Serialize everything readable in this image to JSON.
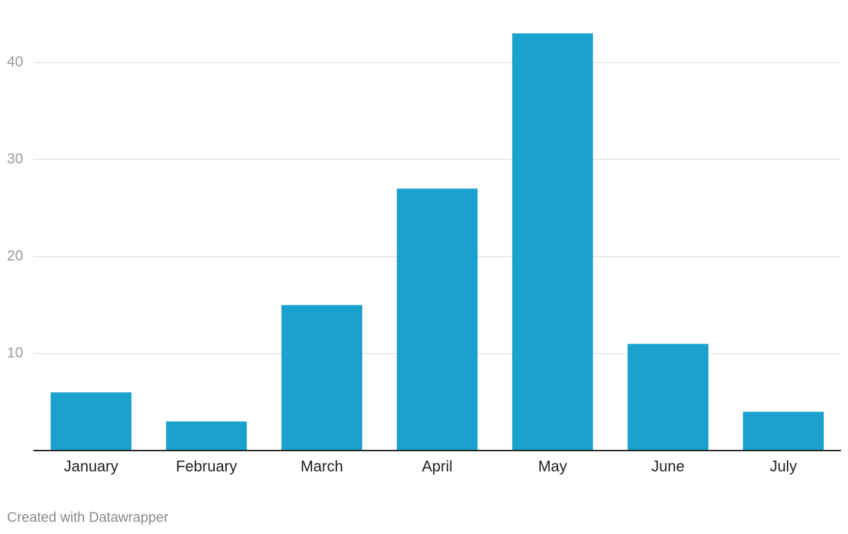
{
  "chart_data": {
    "type": "bar",
    "categories": [
      "January",
      "February",
      "March",
      "April",
      "May",
      "June",
      "July"
    ],
    "values": [
      6,
      3,
      15,
      27,
      43,
      11,
      4
    ],
    "color": "#1aa1cd",
    "ylim": [
      0,
      43
    ],
    "yticks": [
      10,
      20,
      30,
      40
    ],
    "grid": true,
    "credit": "Created with Datawrapper"
  }
}
